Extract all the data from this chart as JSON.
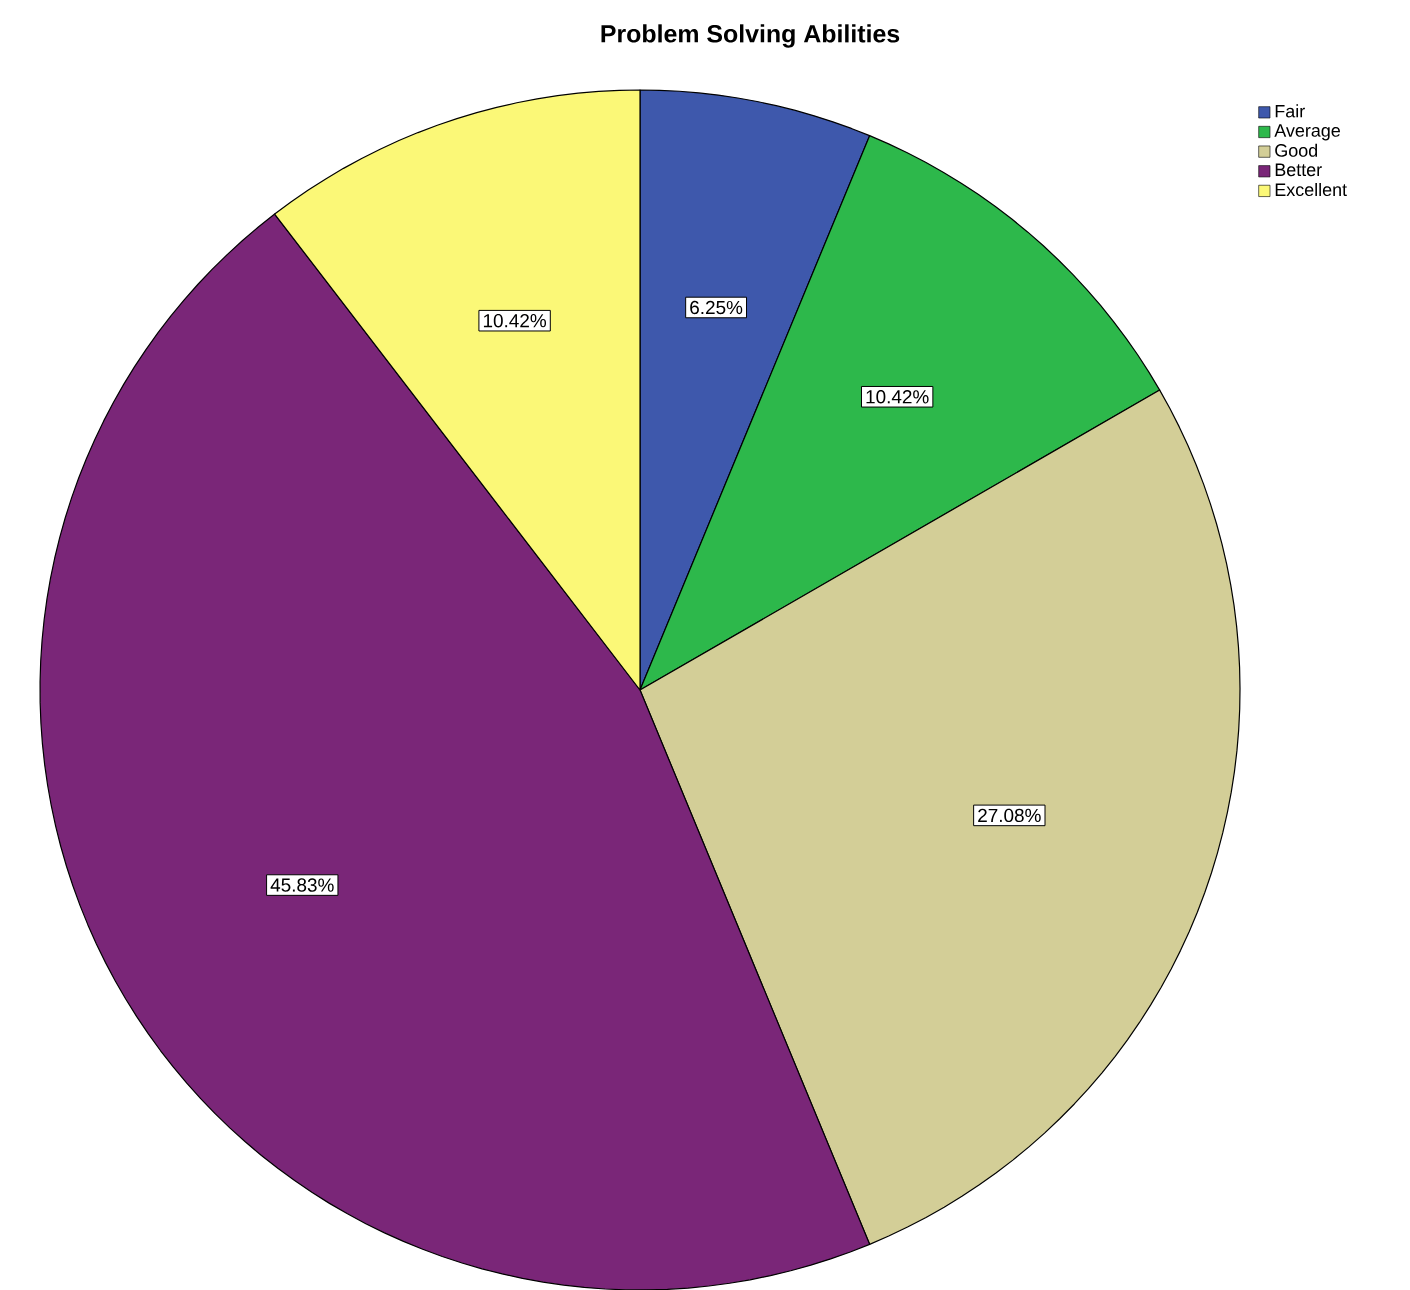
{
  "chart_data": {
    "type": "pie",
    "title": "Problem Solving Abilities",
    "categories": [
      "Fair",
      "Average",
      "Good",
      "Better",
      "Excellent"
    ],
    "values": [
      6.25,
      10.42,
      27.08,
      45.83,
      10.42
    ],
    "value_labels": [
      "6.25%",
      "10.42%",
      "27.08%",
      "45.83%",
      "10.42%"
    ],
    "colors": [
      "#3e58ac",
      "#2db84b",
      "#d3ce97",
      "#7a2678",
      "#fbf877"
    ],
    "legend": "top right"
  }
}
